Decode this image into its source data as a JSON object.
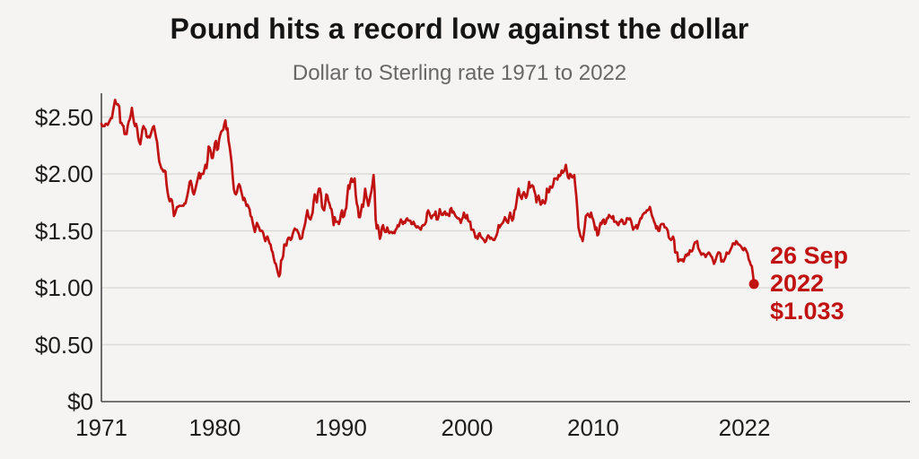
{
  "colors": {
    "background": "#f5f4f2",
    "line_red": "#c11212",
    "gridline": "#dcdbd8",
    "axis": "#4a4a4a",
    "title_text": "#151515",
    "subtitle_text": "#676767",
    "tick_text": "#1d1d1d"
  },
  "chart_data": {
    "type": "line",
    "title": "Pound hits a record low against the dollar",
    "subtitle": "Dollar to Sterling rate 1971 to 2022",
    "legend_position": "none",
    "grid": "horizontal",
    "x_axis": {
      "start_year": 1971,
      "end_year": 2022.73,
      "ticks": [
        {
          "label": "1971",
          "year": 1971
        },
        {
          "label": "1980",
          "year": 1980
        },
        {
          "label": "1990",
          "year": 1990
        },
        {
          "label": "2000",
          "year": 2000
        },
        {
          "label": "2010",
          "year": 2010
        },
        {
          "label": "2022",
          "year": 2022
        }
      ]
    },
    "y_axis": {
      "range": [
        0,
        2.72
      ],
      "ticks": [
        {
          "label": "$2.50",
          "value": 2.5
        },
        {
          "label": "$2.00",
          "value": 2.0
        },
        {
          "label": "$1.50",
          "value": 1.5
        },
        {
          "label": "$1.00",
          "value": 1.0
        },
        {
          "label": "$0.50",
          "value": 0.5
        },
        {
          "label": "$0",
          "value": 0
        }
      ]
    },
    "series": [
      {
        "name": "Dollar to Sterling exchange rate",
        "color": "#c11212",
        "interval": "monthly",
        "start_year": 1971,
        "values": [
          2.44,
          2.42,
          2.42,
          2.42,
          2.44,
          2.44,
          2.43,
          2.45,
          2.47,
          2.49,
          2.49,
          2.55,
          2.6,
          2.65,
          2.62,
          2.61,
          2.61,
          2.59,
          2.45,
          2.45,
          2.43,
          2.42,
          2.35,
          2.35,
          2.35,
          2.42,
          2.46,
          2.48,
          2.52,
          2.58,
          2.51,
          2.45,
          2.42,
          2.44,
          2.4,
          2.32,
          2.28,
          2.26,
          2.32,
          2.39,
          2.42,
          2.4,
          2.39,
          2.33,
          2.32,
          2.33,
          2.32,
          2.35,
          2.38,
          2.41,
          2.42,
          2.37,
          2.32,
          2.28,
          2.19,
          2.11,
          2.08,
          2.05,
          2.04,
          2.02,
          2.03,
          2.02,
          1.91,
          1.84,
          1.79,
          1.76,
          1.78,
          1.77,
          1.72,
          1.63,
          1.65,
          1.68,
          1.71,
          1.71,
          1.72,
          1.72,
          1.72,
          1.72,
          1.72,
          1.74,
          1.74,
          1.78,
          1.82,
          1.87,
          1.93,
          1.94,
          1.9,
          1.84,
          1.82,
          1.85,
          1.89,
          1.93,
          1.97,
          2.01,
          1.96,
          2.0,
          2.0,
          2.0,
          2.04,
          2.08,
          2.05,
          2.12,
          2.24,
          2.23,
          2.2,
          2.14,
          2.14,
          2.2,
          2.27,
          2.29,
          2.21,
          2.22,
          2.3,
          2.34,
          2.37,
          2.38,
          2.39,
          2.44,
          2.47,
          2.39,
          2.4,
          2.29,
          2.24,
          2.17,
          2.09,
          1.97,
          1.87,
          1.83,
          1.82,
          1.84,
          1.89,
          1.91,
          1.89,
          1.85,
          1.81,
          1.77,
          1.79,
          1.76,
          1.72,
          1.73,
          1.71,
          1.69,
          1.63,
          1.62,
          1.57,
          1.53,
          1.49,
          1.53,
          1.57,
          1.55,
          1.53,
          1.5,
          1.5,
          1.5,
          1.48,
          1.44,
          1.41,
          1.44,
          1.45,
          1.42,
          1.39,
          1.38,
          1.33,
          1.31,
          1.26,
          1.22,
          1.21,
          1.17,
          1.13,
          1.1,
          1.12,
          1.24,
          1.25,
          1.28,
          1.38,
          1.38,
          1.37,
          1.42,
          1.44,
          1.44,
          1.42,
          1.43,
          1.47,
          1.5,
          1.52,
          1.51,
          1.51,
          1.49,
          1.47,
          1.43,
          1.43,
          1.44,
          1.5,
          1.53,
          1.57,
          1.63,
          1.68,
          1.63,
          1.61,
          1.6,
          1.63,
          1.66,
          1.76,
          1.82,
          1.79,
          1.75,
          1.83,
          1.87,
          1.87,
          1.82,
          1.71,
          1.69,
          1.68,
          1.74,
          1.82,
          1.81,
          1.76,
          1.74,
          1.7,
          1.69,
          1.63,
          1.55,
          1.62,
          1.58,
          1.58,
          1.58,
          1.56,
          1.59,
          1.65,
          1.68,
          1.62,
          1.63,
          1.68,
          1.7,
          1.81,
          1.9,
          1.87,
          1.93,
          1.96,
          1.93,
          1.93,
          1.96,
          1.82,
          1.74,
          1.71,
          1.62,
          1.62,
          1.67,
          1.73,
          1.71,
          1.78,
          1.87,
          1.81,
          1.77,
          1.72,
          1.76,
          1.81,
          1.85,
          1.91,
          1.99,
          1.85,
          1.6,
          1.52,
          1.55,
          1.51,
          1.43,
          1.46,
          1.53,
          1.55,
          1.51,
          1.49,
          1.49,
          1.53,
          1.5,
          1.48,
          1.49,
          1.49,
          1.48,
          1.49,
          1.48,
          1.51,
          1.52,
          1.55,
          1.54,
          1.57,
          1.6,
          1.58,
          1.56,
          1.58,
          1.57,
          1.6,
          1.61,
          1.59,
          1.59,
          1.59,
          1.56,
          1.56,
          1.58,
          1.56,
          1.54,
          1.53,
          1.54,
          1.53,
          1.52,
          1.51,
          1.54,
          1.55,
          1.55,
          1.56,
          1.58,
          1.66,
          1.68,
          1.66,
          1.63,
          1.61,
          1.63,
          1.64,
          1.64,
          1.67,
          1.6,
          1.6,
          1.63,
          1.69,
          1.66,
          1.64,
          1.64,
          1.66,
          1.67,
          1.64,
          1.65,
          1.64,
          1.63,
          1.69,
          1.7,
          1.66,
          1.67,
          1.65,
          1.63,
          1.62,
          1.61,
          1.61,
          1.6,
          1.57,
          1.6,
          1.62,
          1.66,
          1.62,
          1.61,
          1.64,
          1.59,
          1.58,
          1.58,
          1.51,
          1.51,
          1.51,
          1.48,
          1.44,
          1.45,
          1.43,
          1.47,
          1.48,
          1.45,
          1.44,
          1.43,
          1.42,
          1.4,
          1.41,
          1.44,
          1.46,
          1.45,
          1.43,
          1.44,
          1.43,
          1.42,
          1.42,
          1.44,
          1.46,
          1.49,
          1.55,
          1.53,
          1.55,
          1.56,
          1.57,
          1.59,
          1.62,
          1.6,
          1.58,
          1.57,
          1.62,
          1.66,
          1.62,
          1.59,
          1.61,
          1.68,
          1.69,
          1.75,
          1.82,
          1.87,
          1.82,
          1.8,
          1.78,
          1.82,
          1.84,
          1.82,
          1.79,
          1.81,
          1.86,
          1.93,
          1.88,
          1.89,
          1.9,
          1.89,
          1.85,
          1.82,
          1.75,
          1.79,
          1.81,
          1.77,
          1.73,
          1.74,
          1.77,
          1.75,
          1.74,
          1.77,
          1.87,
          1.84,
          1.84,
          1.89,
          1.88,
          1.88,
          1.91,
          1.96,
          1.96,
          1.96,
          1.95,
          1.99,
          1.98,
          1.99,
          2.03,
          2.01,
          2.02,
          2.04,
          2.08,
          2.02,
          1.97,
          1.96,
          2.0,
          1.99,
          1.97,
          1.97,
          1.99,
          1.89,
          1.8,
          1.68,
          1.53,
          1.49,
          1.45,
          1.44,
          1.41,
          1.47,
          1.54,
          1.63,
          1.64,
          1.65,
          1.63,
          1.62,
          1.66,
          1.62,
          1.6,
          1.56,
          1.51,
          1.53,
          1.46,
          1.47,
          1.53,
          1.57,
          1.56,
          1.59,
          1.6,
          1.56,
          1.57,
          1.61,
          1.61,
          1.64,
          1.63,
          1.62,
          1.61,
          1.63,
          1.58,
          1.58,
          1.58,
          1.56,
          1.55,
          1.58,
          1.58,
          1.6,
          1.59,
          1.56,
          1.56,
          1.57,
          1.61,
          1.61,
          1.6,
          1.61,
          1.59,
          1.55,
          1.51,
          1.53,
          1.53,
          1.55,
          1.52,
          1.55,
          1.58,
          1.61,
          1.61,
          1.64,
          1.65,
          1.66,
          1.66,
          1.68,
          1.68,
          1.69,
          1.71,
          1.67,
          1.63,
          1.61,
          1.58,
          1.56,
          1.52,
          1.54,
          1.5,
          1.5,
          1.55,
          1.56,
          1.56,
          1.56,
          1.53,
          1.53,
          1.52,
          1.5,
          1.44,
          1.43,
          1.42,
          1.43,
          1.45,
          1.42,
          1.31,
          1.31,
          1.31,
          1.23,
          1.24,
          1.25,
          1.24,
          1.25,
          1.23,
          1.26,
          1.29,
          1.28,
          1.3,
          1.29,
          1.33,
          1.32,
          1.32,
          1.34,
          1.38,
          1.4,
          1.4,
          1.41,
          1.35,
          1.33,
          1.31,
          1.29,
          1.3,
          1.3,
          1.29,
          1.27,
          1.29,
          1.3,
          1.31,
          1.3,
          1.28,
          1.27,
          1.24,
          1.21,
          1.23,
          1.26,
          1.29,
          1.31,
          1.31,
          1.3,
          1.23,
          1.24,
          1.23,
          1.25,
          1.27,
          1.31,
          1.3,
          1.3,
          1.32,
          1.34,
          1.36,
          1.39,
          1.39,
          1.38,
          1.41,
          1.4,
          1.38,
          1.38,
          1.37,
          1.36,
          1.34,
          1.33,
          1.35,
          1.34,
          1.32,
          1.3,
          1.25,
          1.23,
          1.2,
          1.19,
          1.12,
          1.033
        ]
      }
    ],
    "end_point": {
      "value": 1.033,
      "marker": "dot"
    },
    "annotation": {
      "line1": "26 Sep",
      "line2": "2022",
      "line3": "$1.033"
    }
  }
}
